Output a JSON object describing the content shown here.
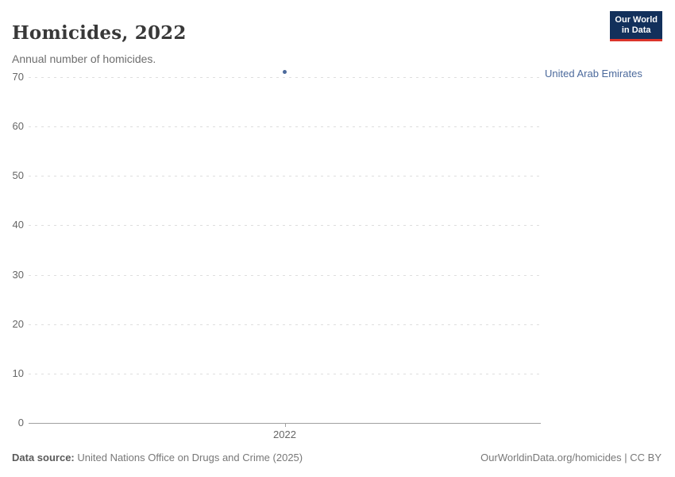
{
  "header": {
    "title": "Homicides, 2022",
    "subtitle": "Annual number of homicides."
  },
  "logo": {
    "line1": "Our World",
    "line2": "in Data",
    "bg_color": "#12305b",
    "accent_color": "#dc352b"
  },
  "chart_data": {
    "type": "scatter",
    "title": "Homicides, 2022",
    "subtitle": "Annual number of homicides.",
    "x": [
      2022
    ],
    "xticks": [
      "2022"
    ],
    "series": [
      {
        "name": "United Arab Emirates",
        "values": [
          71
        ],
        "color": "#4c6a9c"
      }
    ],
    "ylim": [
      0,
      70
    ],
    "yticks": [
      0,
      10,
      20,
      30,
      40,
      50,
      60,
      70
    ],
    "grid": "horizontal-dashed",
    "legend_position": "right-of-point"
  },
  "footer": {
    "datasource_label": "Data source:",
    "datasource_value": "United Nations Office on Drugs and Crime (2025)",
    "attribution": "OurWorldinData.org/homicides | CC BY"
  }
}
